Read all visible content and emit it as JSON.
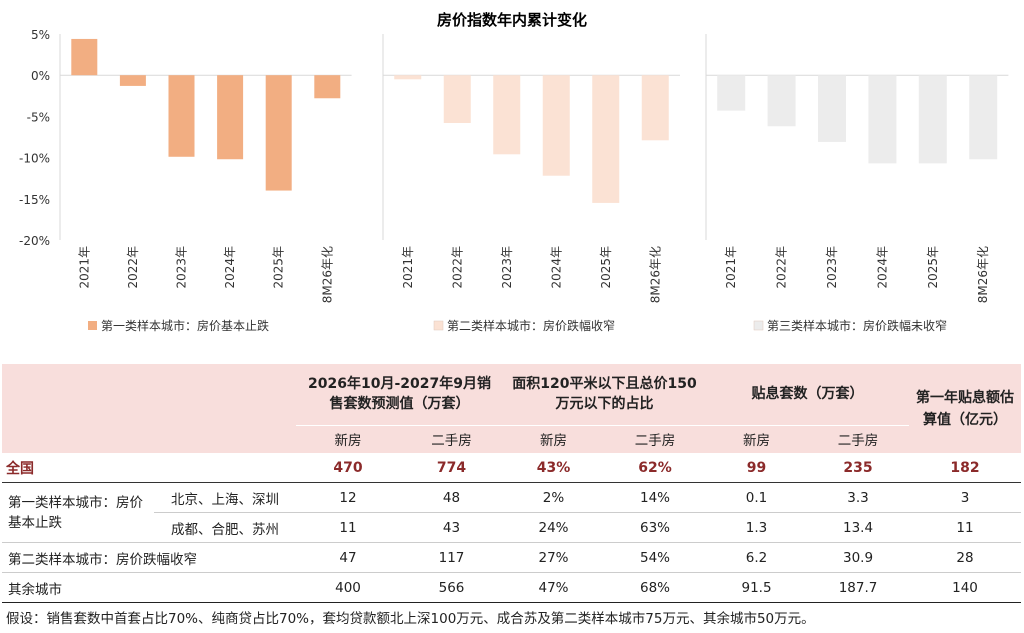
{
  "chart_data": {
    "type": "bar",
    "title": "房价指数年内累计变化",
    "ylim": [
      -20,
      5
    ],
    "yticks": [
      "5%",
      "0%",
      "-5%",
      "-10%",
      "-15%",
      "-20%"
    ],
    "categories": [
      "2021年",
      "2022年",
      "2023年",
      "2024年",
      "2025年",
      "8M26年化"
    ],
    "series": [
      {
        "name": "第一类样本城市：房价基本止跌",
        "color": "#f2ae82",
        "values": [
          4.4,
          -1.3,
          -9.9,
          -10.2,
          -14.0,
          -2.8
        ]
      },
      {
        "name": "第二类样本城市：房价跌幅收窄",
        "color": "#fbe2d4",
        "values": [
          -0.5,
          -5.8,
          -9.6,
          -12.2,
          -15.5,
          -7.9
        ]
      },
      {
        "name": "第三类样本城市：房价跌幅未收窄",
        "color": "#ececec",
        "values": [
          -4.3,
          -6.2,
          -8.1,
          -10.7,
          -10.7,
          -10.2
        ]
      }
    ]
  },
  "table": {
    "headers": {
      "h1": "2026年10月-2027年9月销售套数预测值（万套）",
      "h2": "面积120平米以下且总价150万元以下的占比",
      "h3": "贴息套数（万套）",
      "h4": "第一年贴息额估算值（亿元）",
      "new": "新房",
      "used": "二手房"
    },
    "national": {
      "label": "全国",
      "v": [
        "470",
        "774",
        "43%",
        "62%",
        "99",
        "235",
        "182"
      ]
    },
    "group1_label": "第一类样本城市：房价基本止跌",
    "rows": [
      {
        "label": "北京、上海、深圳",
        "v": [
          "12",
          "48",
          "2%",
          "14%",
          "0.1",
          "3.3",
          "3"
        ]
      },
      {
        "label": "成都、合肥、苏州",
        "v": [
          "11",
          "43",
          "24%",
          "63%",
          "1.3",
          "13.4",
          "11"
        ]
      },
      {
        "label": "第二类样本城市：房价跌幅收窄",
        "v": [
          "47",
          "117",
          "27%",
          "54%",
          "6.2",
          "30.9",
          "28"
        ]
      },
      {
        "label": "其余城市",
        "v": [
          "400",
          "566",
          "47%",
          "68%",
          "91.5",
          "187.7",
          "140"
        ]
      }
    ],
    "note": "假设：销售套数中首套占比70%、纯商贷占比70%，套均贷款额北上深100万元、成合苏及第二类样本城市75万元、其余城市50万元。"
  }
}
